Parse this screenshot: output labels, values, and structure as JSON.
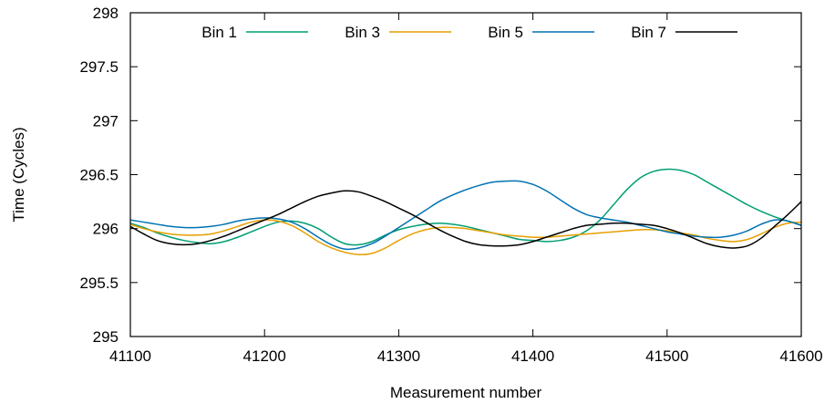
{
  "chart_data": {
    "type": "line",
    "xlabel": "Measurement number",
    "ylabel": "Time (Cycles)",
    "xlim": [
      41100,
      41600
    ],
    "ylim": [
      295,
      298
    ],
    "xticks": [
      "41100",
      "41200",
      "41300",
      "41400",
      "41500",
      "41600"
    ],
    "yticks": [
      "295",
      "295.5",
      "296",
      "296.5",
      "297",
      "297.5",
      "298"
    ],
    "grid": false,
    "legend_position": "top",
    "x": [
      41100,
      41110,
      41120,
      41130,
      41140,
      41150,
      41160,
      41170,
      41180,
      41190,
      41200,
      41210,
      41220,
      41230,
      41240,
      41250,
      41260,
      41270,
      41280,
      41290,
      41300,
      41310,
      41320,
      41330,
      41340,
      41350,
      41360,
      41370,
      41380,
      41390,
      41400,
      41410,
      41420,
      41430,
      41440,
      41450,
      41460,
      41470,
      41480,
      41490,
      41500,
      41510,
      41520,
      41530,
      41540,
      41550,
      41560,
      41570,
      41580,
      41590,
      41600
    ],
    "series": [
      {
        "name": "Bin 1",
        "color": "#009e73",
        "values": [
          296.05,
          296.01,
          295.96,
          295.92,
          295.89,
          295.87,
          295.86,
          295.88,
          295.92,
          295.97,
          296.02,
          296.06,
          296.07,
          296.05,
          296.0,
          295.92,
          295.86,
          295.85,
          295.88,
          295.94,
          295.99,
          296.02,
          296.04,
          296.05,
          296.04,
          296.02,
          295.99,
          295.96,
          295.93,
          295.9,
          295.89,
          295.88,
          295.89,
          295.92,
          295.98,
          296.08,
          296.22,
          296.36,
          296.47,
          296.53,
          296.55,
          296.54,
          296.5,
          296.43,
          296.36,
          296.29,
          296.22,
          296.16,
          296.11,
          296.07,
          296.03
        ]
      },
      {
        "name": "Bin 3",
        "color": "#e69f00",
        "values": [
          296.04,
          296.0,
          295.97,
          295.95,
          295.94,
          295.94,
          295.95,
          295.98,
          296.02,
          296.06,
          296.08,
          296.07,
          296.03,
          295.96,
          295.88,
          295.82,
          295.78,
          295.76,
          295.77,
          295.82,
          295.89,
          295.95,
          295.99,
          296.01,
          296.01,
          296.0,
          295.98,
          295.96,
          295.94,
          295.93,
          295.92,
          295.92,
          295.93,
          295.94,
          295.95,
          295.96,
          295.97,
          295.98,
          295.99,
          295.99,
          295.98,
          295.96,
          295.94,
          295.91,
          295.89,
          295.88,
          295.9,
          295.95,
          296.01,
          296.05,
          296.06
        ]
      },
      {
        "name": "Bin 5",
        "color": "#0072b2",
        "values": [
          296.08,
          296.06,
          296.04,
          296.02,
          296.01,
          296.01,
          296.02,
          296.04,
          296.07,
          296.09,
          296.1,
          296.09,
          296.06,
          296.0,
          295.92,
          295.85,
          295.81,
          295.82,
          295.86,
          295.93,
          296.01,
          296.09,
          296.17,
          296.25,
          296.31,
          296.36,
          296.4,
          296.43,
          296.44,
          296.44,
          296.41,
          296.35,
          296.27,
          296.19,
          296.13,
          296.1,
          296.08,
          296.06,
          296.03,
          296.0,
          295.97,
          295.95,
          295.93,
          295.92,
          295.92,
          295.94,
          295.98,
          296.04,
          296.08,
          296.07,
          296.03
        ]
      },
      {
        "name": "Bin 7",
        "color": "#000000",
        "values": [
          296.02,
          295.95,
          295.89,
          295.86,
          295.85,
          295.86,
          295.89,
          295.93,
          295.98,
          296.03,
          296.08,
          296.13,
          296.19,
          296.25,
          296.3,
          296.33,
          296.35,
          296.34,
          296.3,
          296.25,
          296.19,
          296.13,
          296.06,
          295.99,
          295.93,
          295.88,
          295.85,
          295.84,
          295.84,
          295.85,
          295.88,
          295.92,
          295.96,
          296.0,
          296.03,
          296.04,
          296.05,
          296.05,
          296.04,
          296.03,
          296.0,
          295.96,
          295.91,
          295.86,
          295.83,
          295.82,
          295.84,
          295.91,
          296.02,
          296.13,
          296.25
        ]
      }
    ]
  }
}
